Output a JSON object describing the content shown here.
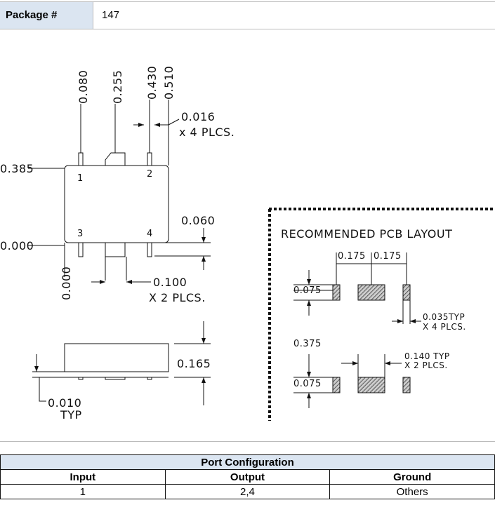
{
  "header": {
    "label": "Package #",
    "value": "147"
  },
  "drawing": {
    "labels": [
      "0.080",
      "0.255",
      "0.430",
      "0.510",
      "0.016",
      "x 4 PLCS.",
      "0.385",
      "0.000",
      "1",
      "2",
      "3",
      "4",
      "0.060",
      "0.000",
      "0.100",
      "X 2 PLCS.",
      "0.165",
      "0.010",
      "TYP"
    ]
  },
  "pcb": {
    "title": "RECOMMENDED PCB LAYOUT",
    "labels": [
      "0.175",
      "0.175",
      "0.075",
      "0.035TYP",
      "X 4 PLCS.",
      "0.375",
      "0.140 TYP",
      "X 2 PLCS.",
      "0.075"
    ]
  },
  "table": {
    "title": "Port Configuration",
    "headers": [
      "Input",
      "Output",
      "Ground"
    ],
    "rows": [
      [
        "1",
        "2,4",
        "Others"
      ]
    ]
  }
}
